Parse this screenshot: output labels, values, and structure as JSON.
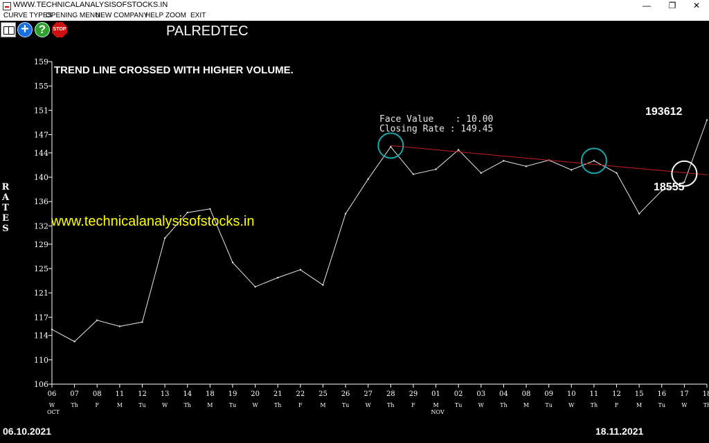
{
  "window": {
    "title": "WWW.TECHNICALANALYSISOFSTOCKS.IN",
    "minimize": "—",
    "restore": "❐",
    "close": "✕"
  },
  "menu": [
    "CURVE TYPES",
    "OPENING MENU",
    "NEW COMPANY",
    "HELP",
    "ZOOM",
    "EXIT"
  ],
  "toolbar": {
    "plus": "+",
    "help": "?",
    "stop": "STOP"
  },
  "symbol": "PALREDTEC",
  "chart_data": {
    "type": "line",
    "annotation_title": "TREND LINE CROSSED WITH HIGHER VOLUME.",
    "watermark": "www.technicalanalysisofstocks.in",
    "ylabel": "RATES",
    "ylim": [
      106,
      159
    ],
    "yticks": [
      159,
      155,
      151,
      147,
      144,
      140,
      136,
      132,
      129,
      125,
      121,
      117,
      114,
      110,
      106
    ],
    "x": [
      "06",
      "07",
      "08",
      "11",
      "12",
      "13",
      "14",
      "18",
      "19",
      "20",
      "21",
      "22",
      "25",
      "26",
      "27",
      "28",
      "29",
      "01",
      "02",
      "03",
      "04",
      "08",
      "09",
      "10",
      "11",
      "12",
      "15",
      "16",
      "17",
      "18"
    ],
    "weekdays": [
      "W",
      "Th",
      "F",
      "M",
      "Tu",
      "W",
      "Th",
      "M",
      "Tu",
      "W",
      "Th",
      "F",
      "M",
      "Tu",
      "W",
      "Th",
      "F",
      "M",
      "Tu",
      "W",
      "Th",
      "M",
      "Tu",
      "W",
      "Th",
      "F",
      "M",
      "Tu",
      "W",
      "Th"
    ],
    "months": [
      {
        "index": 0,
        "label": "OCT"
      },
      {
        "index": 17,
        "label": "NOV"
      }
    ],
    "values": [
      115.0,
      113.0,
      116.5,
      115.5,
      116.2,
      130.0,
      134.2,
      134.8,
      126.0,
      122.0,
      123.5,
      124.8,
      122.3,
      134.0,
      139.7,
      145.0,
      140.5,
      141.3,
      144.5,
      140.7,
      142.7,
      141.8,
      142.8,
      141.2,
      142.7,
      140.7,
      134.0,
      137.8,
      139.2,
      149.4
    ],
    "face_value": "Face Value    : 10.00",
    "closing_rate": "Closing Rate : 149.45",
    "trend_line": {
      "from_index": 15,
      "from_value": 145.2,
      "to_index": 29,
      "to_value": 140.4
    },
    "circles": [
      {
        "index": 15,
        "value": 145.2,
        "color": "#1aa7b0"
      },
      {
        "index": 24,
        "value": 142.7,
        "color": "#1aa7b0"
      },
      {
        "index": 28,
        "value": 140.6,
        "color": "#ffffff"
      }
    ],
    "volume_high": "193612",
    "volume_low": "18555",
    "start_date": "06.10.2021",
    "end_date": "18.11.2021"
  }
}
